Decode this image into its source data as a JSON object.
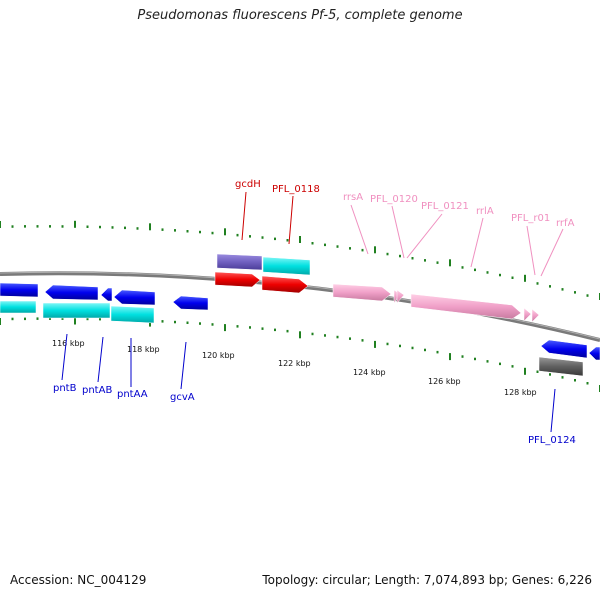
{
  "title": "Pseudomonas fluorescens Pf-5, complete genome",
  "footer": {
    "accession": "Accession: NC_004129",
    "stats": "Topology: circular; Length: 7,074,893 bp; Genes: 6,226"
  },
  "scale_labels": [
    "116 kbp",
    "118 kbp",
    "120 kbp",
    "122 kbp",
    "124 kbp",
    "126 kbp",
    "128 kbp"
  ],
  "gene_labels": {
    "pntB": "pntB",
    "pntAB": "pntAB",
    "pntAA": "pntAA",
    "gcvA": "gcvA",
    "PFL_0124": "PFL_0124",
    "gcdH": "gcdH",
    "PFL_0118": "PFL_0118",
    "rrsA": "rrsA",
    "PFL_0120": "PFL_0120",
    "PFL_0121": "PFL_0121",
    "rrlA": "rrlA",
    "PFL_r01": "PFL_r01",
    "rrfA": "rrfA"
  },
  "colors": {
    "forward_gene": "#0000ee",
    "reverse_gene": "#ee0000",
    "rna_gene": "#f0a0c8",
    "cds_cyan": "#00e0e0",
    "cds_purple": "#7060c0",
    "pseudo_gray": "#606060",
    "tick": "#208020",
    "backbone": "#808080"
  }
}
